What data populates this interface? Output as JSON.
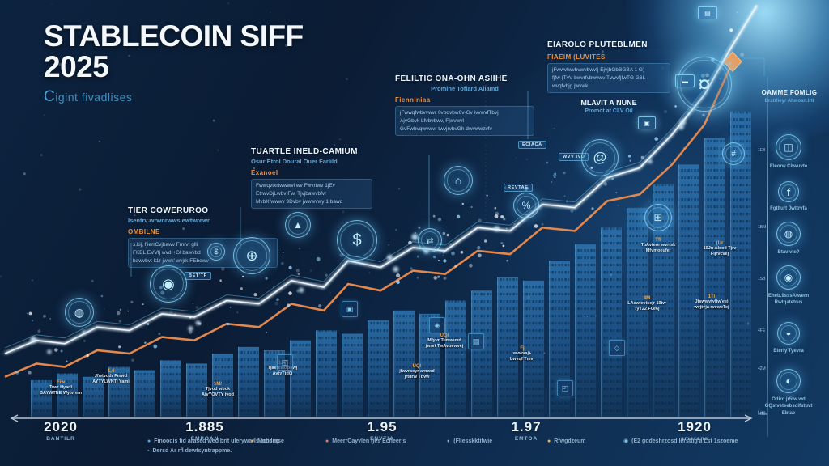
{
  "header": {
    "title_line1": "STABLECOIN SIFF",
    "title_line2": "2025",
    "subtitle_cap": "C",
    "subtitle_rest": "igint fivadlises"
  },
  "milestones": [
    {
      "title": "TIER COWERUROO",
      "subtitle": "Isentrv wrwnrwws ewtwrewr",
      "tag": "OMBILNE",
      "body": "s.kij, fjierrCvjbawv Fmrvt glli\nFKEL EVVfj wvd +Gl bawvbd\nbawvbvt k1r jwwk' wvjrk FEbewv"
    },
    {
      "title": "TUARTLE INELD-CAMIUM",
      "subtitle": "Osur Etrol Doural Ouer Farlild",
      "tag": "Exanoel",
      "body": "Fwwqvtxrtwwwvl wv Fwvrtwv 1jEv\nEtrwvDjLwbv Fwl Tjvjbawvbfvr\nMvbXfwwwv 9Dvbv jwwwvwy 1 bawq"
    },
    {
      "title": "FELILTIC ONA-OHN ASIIHE",
      "subtitle": "Promine Tofiard Aliamd",
      "tag": "Fienniniaa",
      "body": "jFwwqfwbvvwvr 6vbqvbw6v-Gv ivvwvfTbvj\nAjvGbvk Lfvbvbwv, Fjwvwvl\nGvFwbvqwvwvr twvjrvbvGh dwvwwzvfv"
    },
    {
      "title": "EIAROLO PLUTEBLMEN",
      "subtitle": "",
      "tag": "FIAEIM (LUVITES",
      "body": "jFwwvfwvbvwvbwvfj EjvjbGbBGBA 1 G)\nfjfw (TvV bwvrfvbwvwv TvwvfjfwTG G6L\nwvqfvbjg jwvwk",
      "footer_title": "MLAVIT A NUNE",
      "footer_sub": "Promot at CLV Oil"
    }
  ],
  "chips": [
    {
      "t": "ECIACA"
    },
    {
      "t": "WVV IVD"
    },
    {
      "t": "REVTAE"
    },
    {
      "t": "BET'TF"
    }
  ],
  "callouts": [
    {
      "h": "Fiw",
      "l1": "Trwr Hyadl",
      "l2": "BAYWTNE Wytvrem"
    },
    {
      "h": "1,4",
      "l1": "Jfwtvodr Fmwd",
      "l2": "AYTYLWNTI Yamj"
    },
    {
      "h": "1M/",
      "l1": "Tjvod wbok",
      "l2": "AjvYQVTY jvod"
    },
    {
      "h": "1J?",
      "l1": "Tjaereaxfpnwj",
      "l2": "AvtyTtd0j"
    },
    {
      "h": "UQ/",
      "l1": "jfwvrseyr armwd",
      "l2": "jrtdrw Tbvw"
    },
    {
      "h": "UQ/",
      "l1": "Mfyvr Tumwuvd",
      "l2": "jwrvt TwAvbewvej"
    },
    {
      "h": "Fj",
      "l1": "wvwvaj+",
      "l2": "Lwvqf Tmvj"
    },
    {
      "h": "Tfi",
      "l1": "TuAvteor wvrtsk",
      "l2": "Mfymoeufej"
    },
    {
      "h": "(Ur",
      "l1": "10Ju Alcod Tjrv",
      "l2": "Fijrvcvej"
    },
    {
      "h": "4M",
      "l1": "LAswievisejr 19tw",
      "l2": "TyT22 F0e6j"
    },
    {
      "h": "1T/",
      "l1": "Jtswwvtyfiw'eej",
      "l2": "wvjt=ja rveweTej"
    }
  ],
  "floating_icons": [
    {
      "name": "globe-icon",
      "glyph": "◍"
    },
    {
      "name": "emblem-icon",
      "glyph": "◉"
    },
    {
      "name": "dollar-icon",
      "glyph": "$"
    },
    {
      "name": "network-icon",
      "glyph": "⊕"
    },
    {
      "name": "coin-dollar-icon",
      "glyph": "$"
    },
    {
      "name": "sail-icon",
      "glyph": "▲"
    },
    {
      "name": "exchange-icon",
      "glyph": "⇄"
    },
    {
      "name": "house-bank-icon",
      "glyph": "⌂"
    },
    {
      "name": "percent-icon",
      "glyph": "%"
    },
    {
      "name": "at-icon",
      "glyph": "@"
    },
    {
      "name": "grid-icon",
      "glyph": "⊞"
    },
    {
      "name": "coin-icon",
      "glyph": "¤"
    },
    {
      "name": "hash-icon",
      "glyph": "#"
    }
  ],
  "bar_chips": [
    {
      "name": "cart-icon",
      "glyph": "◱"
    },
    {
      "name": "monitor-icon",
      "glyph": "▣"
    },
    {
      "name": "bag-icon",
      "glyph": "◈"
    },
    {
      "name": "person-icon",
      "glyph": "▤"
    },
    {
      "name": "card-icon",
      "glyph": "◰"
    },
    {
      "name": "gift-icon",
      "glyph": "◇"
    }
  ],
  "top_chips": [
    {
      "name": "tag-icon",
      "glyph": "▤"
    },
    {
      "name": "bus-icon",
      "glyph": "▬"
    },
    {
      "name": "camera-icon",
      "glyph": "▣"
    }
  ],
  "sidebar": {
    "title": "OAMME FOMLIG",
    "subtitle": "Bratrlieyr Ahwoan.lrti",
    "items": [
      {
        "name": "card-icon",
        "glyph": "◫",
        "label": "Eleorw Citwuvte"
      },
      {
        "name": "facebook-icon",
        "glyph": "f",
        "label": "Fgtlturt Jwttrvfa"
      },
      {
        "name": "globe-icon",
        "glyph": "◍",
        "label": "Btavivte?"
      },
      {
        "name": "badge-icon",
        "glyph": "◉",
        "label": "Eheb.9sssAtwern\nRwtqatetrus"
      },
      {
        "name": "cloud-icon",
        "glyph": "◒",
        "label": "Eterfy'Tyevra"
      },
      {
        "name": "chart-icon",
        "glyph": "◐",
        "label": "Odirq jr5tw.wd\nGQstveteebsdifstuvt Ebtae"
      }
    ],
    "ticks": [
      "1EB",
      "1BM",
      "1SB",
      "4FE",
      "42M",
      "1Gae"
    ]
  },
  "timeline": [
    {
      "num": "2020",
      "cap": "BANTILR"
    },
    {
      "num": "1.885",
      "cap": "EMPOAN"
    },
    {
      "num": "1.95",
      "cap": "ENVTIA"
    },
    {
      "num": "1.97",
      "cap": "EMTOA"
    },
    {
      "num": "1920",
      "cap": "amsrona"
    }
  ],
  "axis_end_label": "Lim",
  "legend": [
    {
      "marker": "●",
      "color": "#4fa8de",
      "text": "Finoodis fid arased wed brit ulerywarls artisng"
    },
    {
      "marker": "▪",
      "color": "#3f86b5",
      "text": "Dersd Ar rfl dewtsyntrappme."
    },
    {
      "marker": "●",
      "color": "#f0b269",
      "text": "Mandrase"
    },
    {
      "marker": "●",
      "color": "#e8795a",
      "text": "MeerrCayvlen (jes Echeerls"
    },
    {
      "marker": "◐",
      "color": "#9fb9d0",
      "text": "(Fliesskktifwie"
    },
    {
      "marker": "●",
      "color": "#e8b35a",
      "text": "Rfwgdzeum"
    },
    {
      "marker": "◉",
      "color": "#7fc4e8",
      "text": "(E2 gddeshrzosdilersttig'a Lst 1szoeme"
    }
  ],
  "colors": {
    "accent_orange": "#e3874c",
    "diamond_orange": "#ee9a55",
    "line_white": "#e9f4fc",
    "cyan_accent": "#6ecbf2",
    "bar_top": "#2a6ca6",
    "bar_bottom": "#123457"
  },
  "chart_data": {
    "type": "bar+line",
    "title": "STABLECOIN SIFF 2025",
    "xlabel": "",
    "ylabel": "",
    "x_ticks": [
      {
        "label": "2020",
        "sublabel": "BANTILR"
      },
      {
        "label": "1.885",
        "sublabel": "EMPOAN"
      },
      {
        "label": "1.95",
        "sublabel": "ENVTIA"
      },
      {
        "label": "1.97",
        "sublabel": "EMTOA"
      },
      {
        "label": "1920",
        "sublabel": "amsrona"
      }
    ],
    "ylim": [
      0,
      110
    ],
    "units": "relative growth index (no numeric axis labels shown in source)",
    "bars": {
      "values": [
        11,
        13,
        12,
        15,
        14,
        17,
        16,
        19,
        21,
        20,
        23,
        26,
        25,
        29,
        32,
        31,
        35,
        38,
        42,
        41,
        47,
        52,
        57,
        63,
        70,
        76,
        84,
        92
      ]
    },
    "orange_line": {
      "points": [
        [
          6,
          12
        ],
        [
          45,
          16
        ],
        [
          80,
          15
        ],
        [
          120,
          20
        ],
        [
          160,
          19
        ],
        [
          200,
          24
        ],
        [
          240,
          23
        ],
        [
          280,
          28
        ],
        [
          320,
          27
        ],
        [
          360,
          34
        ],
        [
          400,
          32
        ],
        [
          430,
          40
        ],
        [
          470,
          38
        ],
        [
          510,
          44
        ],
        [
          550,
          43
        ],
        [
          590,
          50
        ],
        [
          630,
          49
        ],
        [
          670,
          57
        ],
        [
          710,
          56
        ],
        [
          750,
          65
        ],
        [
          790,
          67
        ],
        [
          830,
          76
        ],
        [
          870,
          88
        ],
        [
          905,
          107
        ]
      ]
    },
    "white_line": {
      "points": [
        [
          6,
          19
        ],
        [
          45,
          23
        ],
        [
          80,
          22
        ],
        [
          120,
          27
        ],
        [
          160,
          26
        ],
        [
          200,
          31
        ],
        [
          240,
          30
        ],
        [
          280,
          35
        ],
        [
          320,
          34
        ],
        [
          360,
          41
        ],
        [
          400,
          39
        ],
        [
          430,
          47
        ],
        [
          470,
          45
        ],
        [
          510,
          51
        ],
        [
          550,
          50
        ],
        [
          590,
          57
        ],
        [
          630,
          56
        ],
        [
          670,
          64
        ],
        [
          710,
          63
        ],
        [
          750,
          72
        ],
        [
          790,
          75
        ],
        [
          830,
          85
        ],
        [
          870,
          97
        ],
        [
          900,
          110
        ],
        [
          920,
          118
        ],
        [
          935,
          124
        ]
      ]
    },
    "marker": {
      "type": "diamond",
      "at_point_index": 23,
      "series": "orange_line"
    }
  }
}
